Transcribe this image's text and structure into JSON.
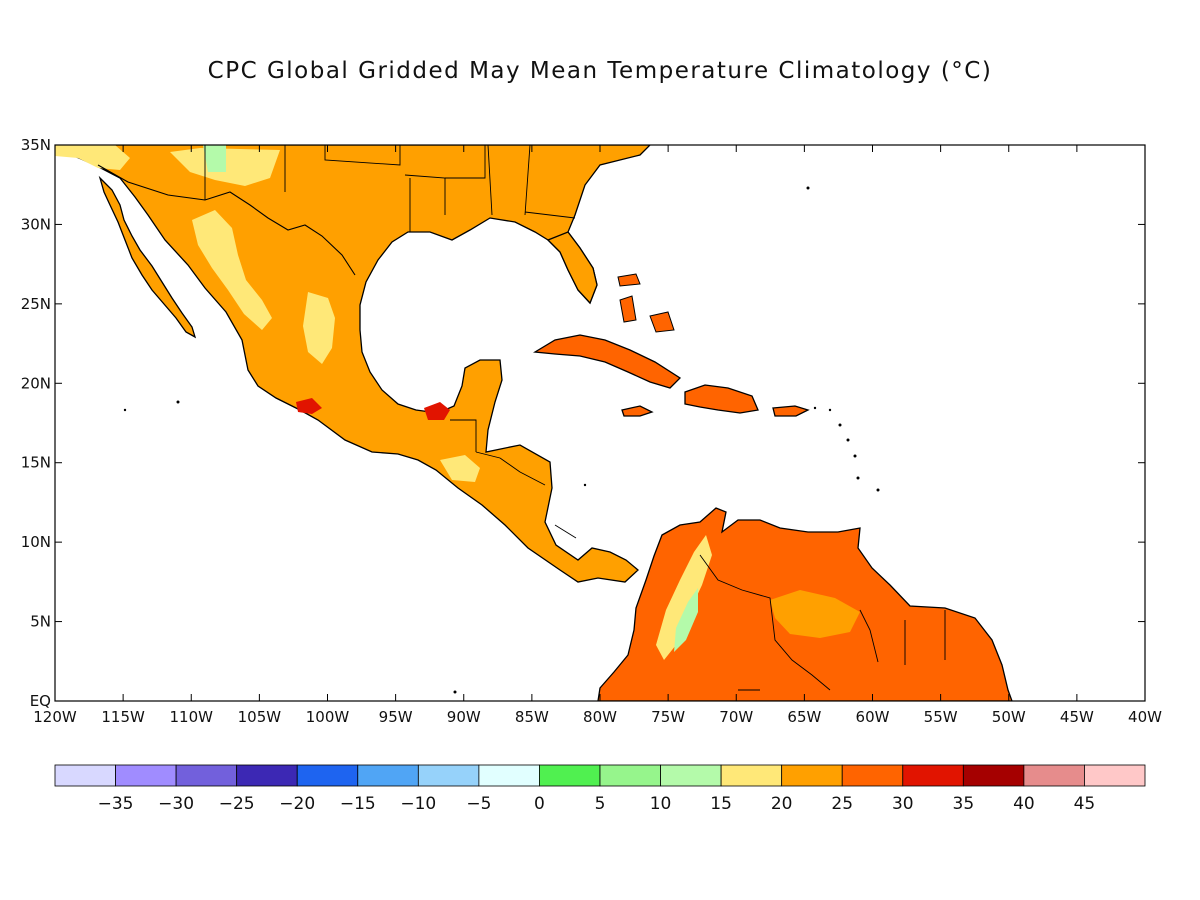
{
  "title": "CPC Global Gridded May Mean Temperature Climatology (°C)",
  "map": {
    "lon_range": [
      -120,
      -40
    ],
    "lat_range": [
      0,
      35
    ],
    "lat_ticks": [
      {
        "value": 35,
        "label": "35N"
      },
      {
        "value": 30,
        "label": "30N"
      },
      {
        "value": 25,
        "label": "25N"
      },
      {
        "value": 20,
        "label": "20N"
      },
      {
        "value": 15,
        "label": "15N"
      },
      {
        "value": 10,
        "label": "10N"
      },
      {
        "value": 5,
        "label": "5N"
      },
      {
        "value": 0,
        "label": "EQ"
      }
    ],
    "lon_ticks": [
      {
        "value": -120,
        "label": "120W"
      },
      {
        "value": -115,
        "label": "115W"
      },
      {
        "value": -110,
        "label": "110W"
      },
      {
        "value": -105,
        "label": "105W"
      },
      {
        "value": -100,
        "label": "100W"
      },
      {
        "value": -95,
        "label": "95W"
      },
      {
        "value": -90,
        "label": "90W"
      },
      {
        "value": -85,
        "label": "85W"
      },
      {
        "value": -80,
        "label": "80W"
      },
      {
        "value": -75,
        "label": "75W"
      },
      {
        "value": -70,
        "label": "70W"
      },
      {
        "value": -65,
        "label": "65W"
      },
      {
        "value": -60,
        "label": "60W"
      },
      {
        "value": -55,
        "label": "55W"
      },
      {
        "value": -50,
        "label": "50W"
      },
      {
        "value": -45,
        "label": "45W"
      },
      {
        "value": -40,
        "label": "40W"
      }
    ]
  },
  "colorbar": {
    "colors": [
      "#d8d8ff",
      "#a08cff",
      "#7260dc",
      "#3c28b4",
      "#1e64f0",
      "#50a5f5",
      "#96d2fa",
      "#e1ffff",
      "#50f050",
      "#96f58c",
      "#b4faaa",
      "#ffe878",
      "#ffa000",
      "#ff6400",
      "#e11400",
      "#a50000",
      "#e68c8c",
      "#ffc8c8"
    ],
    "labels": [
      "-35",
      "-30",
      "-25",
      "-20",
      "-15",
      "-10",
      "-5",
      "0",
      "5",
      "10",
      "15",
      "20",
      "25",
      "30",
      "35",
      "40",
      "45"
    ]
  }
}
